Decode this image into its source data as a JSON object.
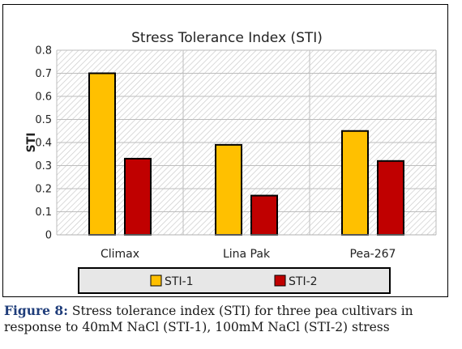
{
  "chart_data": {
    "type": "bar",
    "title": "Stress Tolerance Index (STI)",
    "xlabel": "",
    "ylabel": "STI",
    "categories": [
      "Climax",
      "Lina Pak",
      "Pea-267"
    ],
    "series": [
      {
        "name": "STI-1",
        "values": [
          0.7,
          0.39,
          0.45
        ],
        "color": "#ffc000"
      },
      {
        "name": "STI-2",
        "values": [
          0.33,
          0.17,
          0.32
        ],
        "color": "#c00000"
      }
    ],
    "ylim": [
      0,
      0.8
    ],
    "yticks": [
      "0",
      "0.1",
      "0.2",
      "0.3",
      "0.4",
      "0.5",
      "0.6",
      "0.7",
      "0.8"
    ],
    "grid": true,
    "legend_position": "bottom"
  },
  "caption": {
    "label": "Figure 8:",
    "text": " Stress tolerance index (STI) for three pea cultivars in response to 40mM NaCl (STI-1), 100mM NaCl (STI-2) stress"
  }
}
